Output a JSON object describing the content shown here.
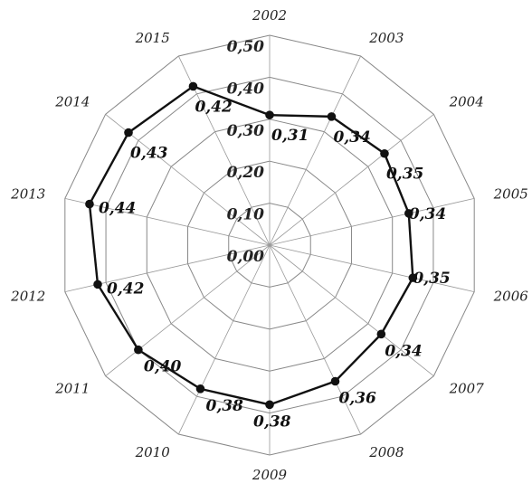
{
  "chart_data": {
    "type": "radar",
    "categories": [
      "2002",
      "2003",
      "2004",
      "2005",
      "2006",
      "2007",
      "2008",
      "2009",
      "2010",
      "2011",
      "2012",
      "2013",
      "2014",
      "2015"
    ],
    "values": [
      0.31,
      0.34,
      0.35,
      0.34,
      0.35,
      0.34,
      0.36,
      0.38,
      0.38,
      0.4,
      0.42,
      0.44,
      0.43,
      0.42
    ],
    "value_labels": [
      "0,31",
      "0,34",
      "0,35",
      "0,34",
      "0,35",
      "0,34",
      "0,36",
      "0,38",
      "0,38",
      "0,40",
      "0,42",
      "0,44",
      "0,43",
      "0,42"
    ],
    "rlim": [
      0,
      0.5
    ],
    "ticks": [
      0.0,
      0.1,
      0.2,
      0.3,
      0.4,
      0.5
    ],
    "tick_labels": [
      "0,00",
      "0,10",
      "0,20",
      "0,30",
      "0,40",
      "0,50"
    ],
    "grid": true,
    "colors": {
      "series": "#111111",
      "grid": "#888888"
    }
  }
}
